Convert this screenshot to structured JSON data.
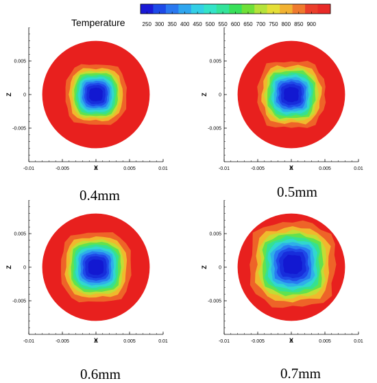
{
  "legend": {
    "title": "Temperature",
    "levels": [
      250,
      300,
      350,
      400,
      450,
      500,
      550,
      600,
      650,
      700,
      750,
      800,
      850,
      900
    ],
    "colors": [
      "#1a1ad6",
      "#1d4ae8",
      "#2a78f0",
      "#2fa6ef",
      "#33cfe6",
      "#33e3c8",
      "#33e39a",
      "#38e05a",
      "#6fe038",
      "#b5e33a",
      "#e5df37",
      "#f2b232",
      "#ef7a2e",
      "#ea3f2b",
      "#e82a27"
    ]
  },
  "chart_data": [
    {
      "type": "heatmap",
      "caption": "0.4mm",
      "xlabel": "X",
      "ylabel": "Z",
      "xlim": [
        -0.01,
        0.01
      ],
      "ylim": [
        -0.01,
        0.01
      ],
      "x_ticks": [
        "-0.01",
        "-0.005",
        "0",
        "0.005",
        "0.01"
      ],
      "y_ticks": [
        "0.005",
        "0",
        "-0.005"
      ],
      "domain_radius": 0.008,
      "ambient_value": 900,
      "core_value": 250,
      "core_half_width": 0.002,
      "core_shape": "rounded-square"
    },
    {
      "type": "heatmap",
      "caption": "0.5mm",
      "xlabel": "X",
      "ylabel": "Z",
      "xlim": [
        -0.01,
        0.01
      ],
      "ylim": [
        -0.01,
        0.01
      ],
      "x_ticks": [
        "-0.01",
        "-0.005",
        "0",
        "0.005",
        "0.01"
      ],
      "y_ticks": [
        "0.005",
        "0",
        "-0.005"
      ],
      "domain_radius": 0.008,
      "ambient_value": 900,
      "core_value": 250,
      "core_half_width": 0.0022,
      "core_shape": "irregular"
    },
    {
      "type": "heatmap",
      "caption": "0.6mm",
      "xlabel": "X",
      "ylabel": "Z",
      "xlim": [
        -0.01,
        0.01
      ],
      "ylim": [
        -0.01,
        0.01
      ],
      "x_ticks": [
        "-0.01",
        "-0.005",
        "0",
        "0.005",
        "0.01"
      ],
      "y_ticks": [
        "0.005",
        "0",
        "-0.005"
      ],
      "domain_radius": 0.008,
      "ambient_value": 900,
      "core_value": 250,
      "core_half_width": 0.0023,
      "core_shape": "rounded-square"
    },
    {
      "type": "heatmap",
      "caption": "0.7mm",
      "xlabel": "X",
      "ylabel": "Z",
      "xlim": [
        -0.01,
        0.01
      ],
      "ylim": [
        -0.01,
        0.01
      ],
      "x_ticks": [
        "-0.01",
        "-0.005",
        "0",
        "0.005",
        "0.01"
      ],
      "y_ticks": [
        "0.005",
        "0",
        "-0.005"
      ],
      "domain_radius": 0.008,
      "ambient_value": 900,
      "core_value": 250,
      "core_half_width": 0.0028,
      "core_shape": "irregular"
    }
  ]
}
